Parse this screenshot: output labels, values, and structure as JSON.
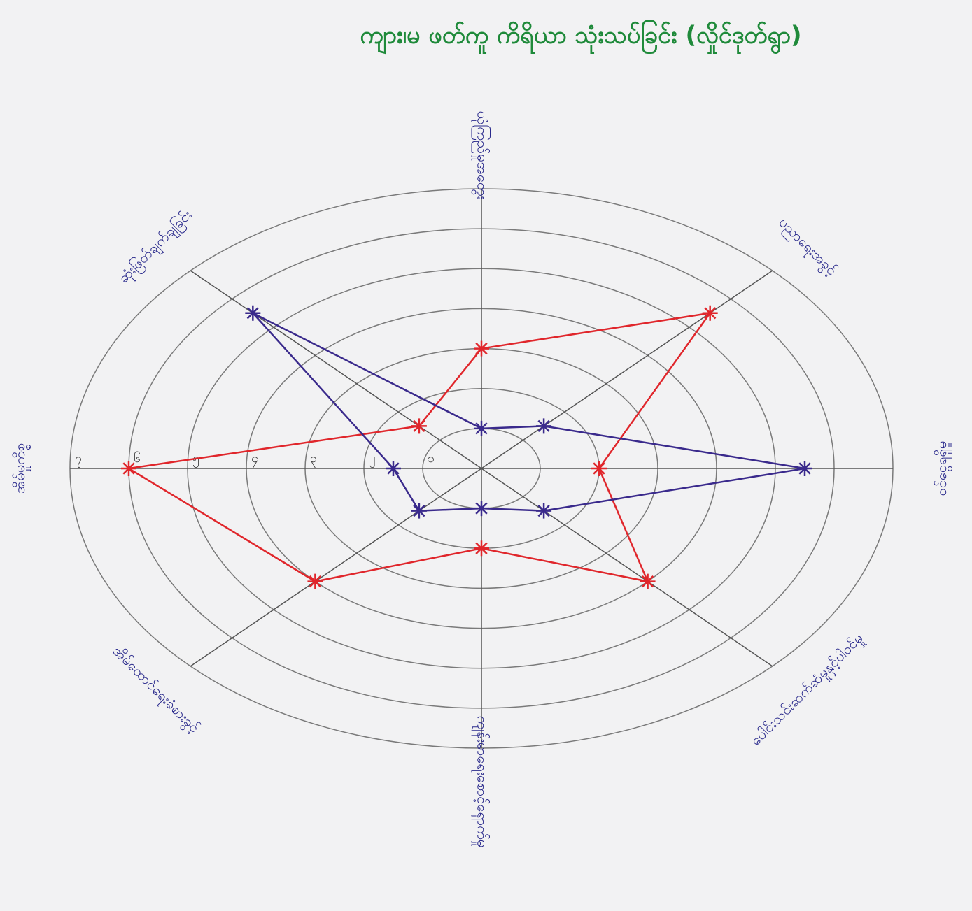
{
  "chart_data": {
    "type": "radar",
    "title": "ကျား၊မ ဖတ်ကူ ကိရိယာ သုံးသပ်ခြင်း (လှိုင်ဒုတ်ရွာ)",
    "categories": [
      "ယုံကြည်မှုအတွေး",
      "ပညာရေးအခွင့်",
      "ဝင်ငွေရရှိမှု",
      "ပေါင်းသင်းဆက်ဆံမှုနှင့်ပါဝင်မှု",
      "ကျန်းမာရေးစောင့်ရှောက်မှု",
      "အိမ်ထောင်ရေးခံစားခွင့်",
      "အိမ်မှုကိစ္စ",
      "ဆုံးဖြတ်ချက်ချခြင်း"
    ],
    "series": [
      {
        "color": "#e0262b",
        "values": [
          3,
          5.5,
          2,
          4,
          2,
          4,
          6,
          1.5
        ]
      },
      {
        "color": "#3a2a8c",
        "values": [
          1,
          1.5,
          5.5,
          1.5,
          1,
          1.5,
          1.5,
          5.5
        ]
      }
    ],
    "ylim": [
      0,
      7
    ],
    "yticks": [
      {
        "value": 1,
        "label": "၁"
      },
      {
        "value": 2,
        "label": "၂"
      },
      {
        "value": 3,
        "label": "၃"
      },
      {
        "value": 4,
        "label": "၄"
      },
      {
        "value": 5,
        "label": "၅"
      },
      {
        "value": 6,
        "label": "၆"
      },
      {
        "value": 7,
        "label": "၇"
      }
    ]
  }
}
